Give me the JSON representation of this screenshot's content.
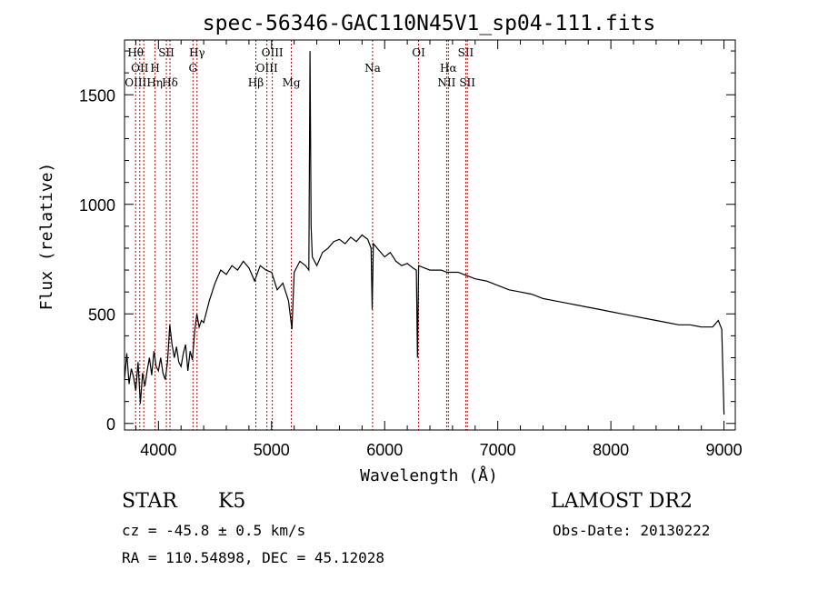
{
  "chart_data": {
    "type": "line",
    "title": "spec-56346-GAC110N45V1_sp04-111.fits",
    "xlabel": "Wavelength (Å)",
    "ylabel": "Flux (relative)",
    "xlim": [
      3700,
      9100
    ],
    "ylim": [
      -30,
      1750
    ],
    "xticks": [
      4000,
      5000,
      6000,
      7000,
      8000,
      9000
    ],
    "yticks": [
      0,
      500,
      1000,
      1500
    ],
    "xtick_labels": [
      "4000",
      "5000",
      "6000",
      "7000",
      "8000",
      "9000"
    ],
    "ytick_labels": [
      "0",
      "500",
      "1000",
      "1500"
    ],
    "grid": false,
    "line_color": "#000000",
    "marker_color": "#c00000",
    "series": [
      {
        "x": [
          3700,
          3720,
          3740,
          3760,
          3780,
          3800,
          3820,
          3840,
          3860,
          3880,
          3900,
          3920,
          3940,
          3960,
          3980,
          4000,
          4020,
          4040,
          4060,
          4080,
          4100,
          4120,
          4140,
          4160,
          4180,
          4200,
          4220,
          4240,
          4260,
          4280,
          4300,
          4320,
          4340,
          4360,
          4380,
          4400,
          4450,
          4500,
          4550,
          4600,
          4650,
          4700,
          4750,
          4800,
          4850,
          4900,
          4950,
          5000,
          5050,
          5100,
          5150,
          5180,
          5200,
          5250,
          5300,
          5330,
          5340,
          5350,
          5360,
          5400,
          5450,
          5500,
          5550,
          5600,
          5650,
          5700,
          5750,
          5800,
          5850,
          5880,
          5890,
          5900,
          5950,
          6000,
          6050,
          6100,
          6150,
          6200,
          6250,
          6280,
          6290,
          6300,
          6350,
          6400,
          6450,
          6500,
          6550,
          6600,
          6650,
          6700,
          6750,
          6800,
          6900,
          7000,
          7100,
          7200,
          7300,
          7400,
          7500,
          7600,
          7700,
          7800,
          7900,
          8000,
          8100,
          8200,
          8300,
          8400,
          8500,
          8600,
          8700,
          8800,
          8900,
          8950,
          8980,
          9000
        ],
        "y": [
          200,
          320,
          180,
          250,
          210,
          150,
          280,
          90,
          230,
          170,
          240,
          300,
          220,
          330,
          260,
          240,
          300,
          230,
          200,
          280,
          450,
          360,
          300,
          350,
          280,
          260,
          320,
          360,
          240,
          330,
          290,
          420,
          500,
          440,
          470,
          460,
          560,
          640,
          700,
          680,
          720,
          700,
          740,
          710,
          650,
          720,
          700,
          690,
          610,
          640,
          560,
          430,
          690,
          740,
          720,
          700,
          1700,
          900,
          760,
          720,
          780,
          800,
          830,
          840,
          820,
          850,
          830,
          860,
          840,
          800,
          520,
          820,
          790,
          760,
          780,
          740,
          720,
          730,
          710,
          700,
          300,
          720,
          710,
          700,
          700,
          700,
          690,
          690,
          690,
          680,
          670,
          660,
          650,
          630,
          610,
          600,
          590,
          570,
          560,
          550,
          540,
          530,
          520,
          510,
          500,
          490,
          480,
          470,
          460,
          450,
          450,
          440,
          440,
          470,
          430,
          40
        ]
      }
    ],
    "line_markers": [
      {
        "x": 3798,
        "top": "Hθ"
      },
      {
        "x": 3835,
        "mid": "OII"
      },
      {
        "x": 3870,
        "low": "OIIIHη"
      },
      {
        "x": 3970,
        "mid": "H"
      },
      {
        "x": 4070,
        "top": "SII"
      },
      {
        "x": 4102,
        "low": "Hδ"
      },
      {
        "x": 4305,
        "mid": "G"
      },
      {
        "x": 4341,
        "top": "Hγ"
      },
      {
        "x": 4861,
        "low": "Hβ"
      },
      {
        "x": 4959,
        "mid": "OIII"
      },
      {
        "x": 5007,
        "top": "OIII"
      },
      {
        "x": 5175,
        "low": "Mg"
      },
      {
        "x": 5893,
        "mid": "Na"
      },
      {
        "x": 6300,
        "top": "OI"
      },
      {
        "x": 6548,
        "low": "NII"
      },
      {
        "x": 6563,
        "mid": "Hα"
      },
      {
        "x": 6717,
        "top": "SII"
      },
      {
        "x": 6731,
        "low": "SII"
      }
    ]
  },
  "info": {
    "class": "STAR",
    "subclass": "K5",
    "survey": "LAMOST DR2",
    "cz": "cz = -45.8 ± 0.5 km/s",
    "obs_date": "Obs-Date: 20130222",
    "coords": "RA = 110.54898, DEC =  45.12028"
  }
}
